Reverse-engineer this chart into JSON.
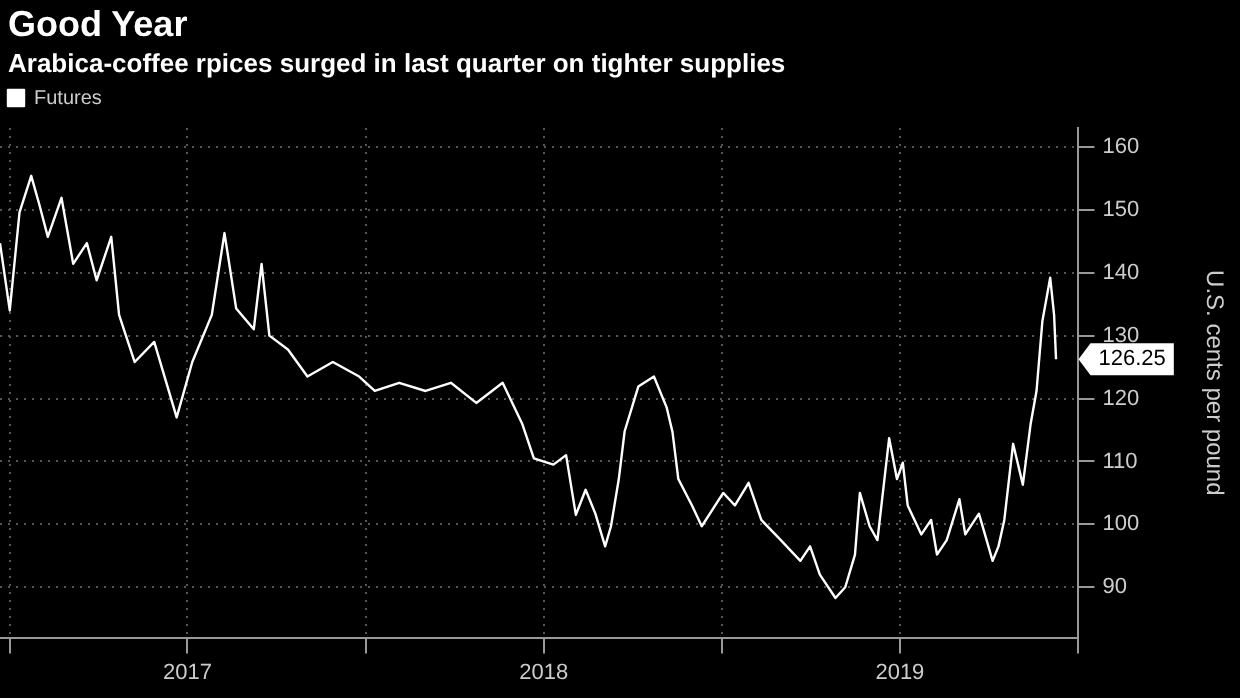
{
  "chart_data": {
    "type": "line",
    "title": "Good Year",
    "subtitle": "Arabica-coffee rpices surged in last quarter on tighter supplies",
    "ylabel": "U.S. cents per pound",
    "x": [
      "2016-12-22",
      "2017-01-01",
      "2017-01-11",
      "2017-01-23",
      "2017-01-31",
      "2017-02-09",
      "2017-02-23",
      "2017-03-07",
      "2017-03-21",
      "2017-03-31",
      "2017-04-15",
      "2017-04-23",
      "2017-05-09",
      "2017-05-29",
      "2017-06-21",
      "2017-07-07",
      "2017-07-27",
      "2017-08-09",
      "2017-08-21",
      "2017-09-08",
      "2017-09-16",
      "2017-09-24",
      "2017-10-13",
      "2017-11-02",
      "2017-11-28",
      "2017-12-25",
      "2018-01-10",
      "2018-02-04",
      "2018-03-03",
      "2018-03-29",
      "2018-04-24",
      "2018-05-21",
      "2018-06-10",
      "2018-06-22",
      "2018-07-12",
      "2018-07-25",
      "2018-08-04",
      "2018-08-14",
      "2018-08-24",
      "2018-09-03",
      "2018-09-09",
      "2018-09-17",
      "2018-09-23",
      "2018-10-07",
      "2018-10-23",
      "2018-11-05",
      "2018-11-11",
      "2018-11-17",
      "2018-12-01",
      "2018-12-11",
      "2019-01-02",
      "2019-01-14",
      "2019-01-28",
      "2019-02-10",
      "2019-03-02",
      "2019-03-22",
      "2019-04-01",
      "2019-04-11",
      "2019-04-27",
      "2019-05-07",
      "2019-05-17",
      "2019-05-22",
      "2019-06-01",
      "2019-06-09",
      "2019-06-21",
      "2019-06-29",
      "2019-07-05",
      "2019-07-10",
      "2019-07-24",
      "2019-08-03",
      "2019-08-09",
      "2019-08-19",
      "2019-09-01",
      "2019-09-07",
      "2019-09-21",
      "2019-10-05",
      "2019-10-11",
      "2019-10-17",
      "2019-10-26",
      "2019-11-05",
      "2019-11-13",
      "2019-11-19",
      "2019-11-25",
      "2019-12-03",
      "2019-12-07",
      "2019-12-09"
    ],
    "series": [
      {
        "name": "Futures",
        "color": "#ffffff",
        "values": [
          144.7,
          134,
          149.6,
          155.4,
          151,
          145.7,
          151.9,
          141.4,
          144.7,
          138.8,
          145.7,
          133.3,
          125.8,
          129,
          117,
          125.8,
          133.3,
          146.3,
          134.3,
          131,
          141.4,
          130,
          127.8,
          123.5,
          125.8,
          123.5,
          121.2,
          122.5,
          121.2,
          122.5,
          119.3,
          122.5,
          116,
          110.5,
          109.5,
          111,
          101.5,
          105.5,
          101.7,
          96.5,
          99.7,
          107.2,
          114.8,
          121.9,
          123.5,
          118.6,
          114.7,
          107.2,
          103,
          99.7,
          105,
          103,
          106.6,
          100.7,
          97.5,
          94.2,
          96.5,
          92,
          88.3,
          90,
          95.2,
          105,
          99.7,
          97.5,
          113.7,
          107.2,
          109.8,
          103,
          98.4,
          100.7,
          95.2,
          97.5,
          104,
          98.4,
          101.7,
          94.2,
          96.5,
          100.7,
          112.8,
          106.3,
          116,
          121.2,
          132.3,
          139.2,
          133.3,
          126.25
        ]
      }
    ],
    "xlim": [
      "2016-12-22",
      "2020-01-01"
    ],
    "xticks": [
      {
        "value": "2017-01-01",
        "label": null
      },
      {
        "value": "2017-07-02",
        "label": "2017"
      },
      {
        "value": "2018-01-01",
        "label": null
      },
      {
        "value": "2018-07-02",
        "label": "2018"
      },
      {
        "value": "2019-01-01",
        "label": null
      },
      {
        "value": "2019-07-02",
        "label": "2019"
      },
      {
        "value": "2020-01-01",
        "label": null
      }
    ],
    "ylim": [
      82,
      163
    ],
    "yticks": [
      90,
      100,
      110,
      120,
      130,
      140,
      150,
      160
    ],
    "annotations": [
      {
        "text": "126.25",
        "x": "2019-12-09",
        "y": 126.25
      }
    ],
    "grid": true,
    "legend": "top left",
    "marker": "none",
    "line_style": "solid"
  }
}
